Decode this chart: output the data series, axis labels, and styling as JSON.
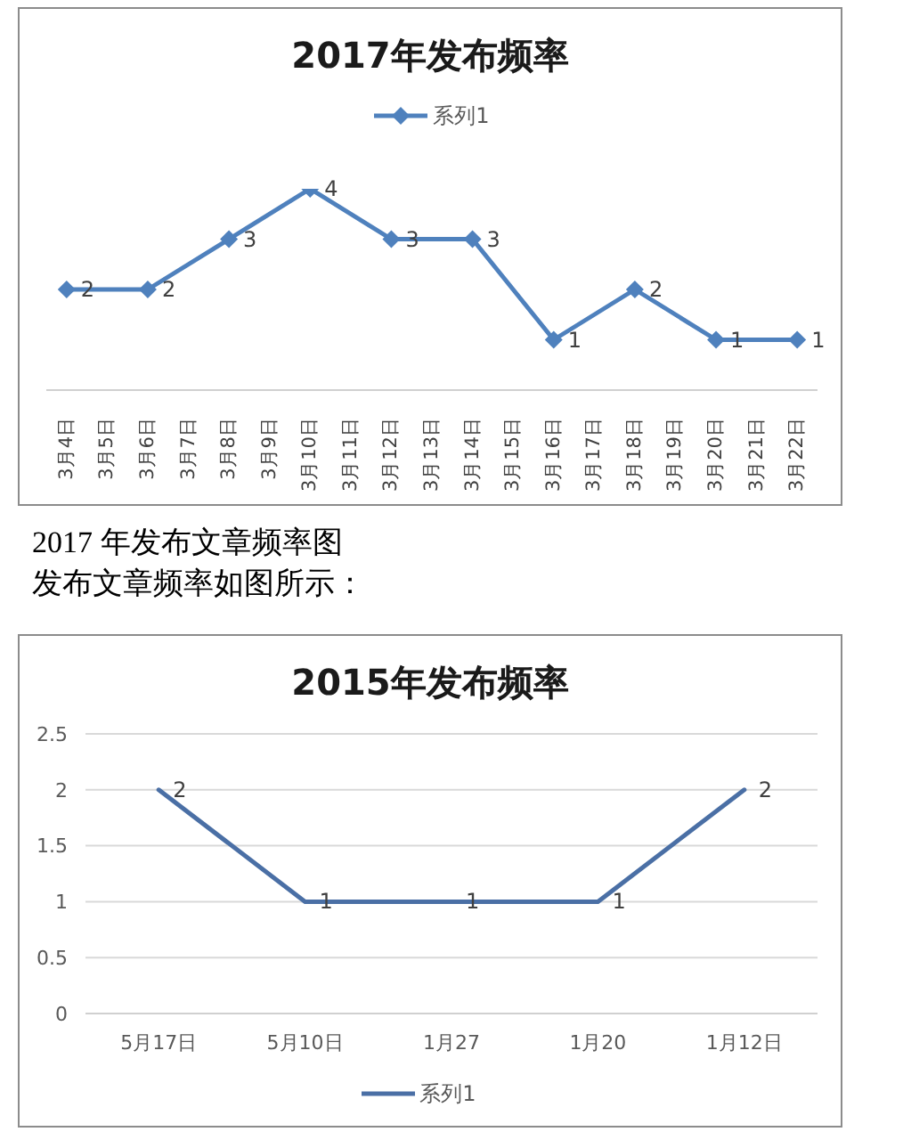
{
  "chart_data": [
    {
      "type": "line",
      "title": "2017年发布频率",
      "categories": [
        "3月4日",
        "3月5日",
        "3月6日",
        "3月7日",
        "3月8日",
        "3月9日",
        "3月10日",
        "3月11日",
        "3月12日",
        "3月13日",
        "3月14日",
        "3月15日",
        "3月16日",
        "3月17日",
        "3月18日",
        "3月19日",
        "3月20日",
        "3月21日",
        "3月22日"
      ],
      "series": [
        {
          "name": "系列1",
          "color": "#4f81bd",
          "values": [
            2,
            null,
            2,
            null,
            3,
            null,
            4,
            null,
            3,
            null,
            3,
            null,
            1,
            null,
            2,
            null,
            1,
            null,
            1
          ]
        }
      ],
      "legend": "top",
      "marker": "diamond",
      "data_labels": true,
      "tick_labels": "x",
      "annotations": [
        "2017 年发布文章频率图",
        "发布文章频率如图所示："
      ]
    },
    {
      "type": "line",
      "title": "2015年发布频率",
      "categories": [
        "5月17日",
        "5月10日",
        "1月27",
        "1月20",
        "1月12日"
      ],
      "series": [
        {
          "name": "系列1",
          "color": "#4a6fa5",
          "values": [
            2,
            1,
            1,
            1,
            2
          ]
        }
      ],
      "legend": "bottom",
      "data_labels": true,
      "grid": "y",
      "ylim": [
        0,
        2.5
      ],
      "yticks": [
        0,
        0.5,
        1,
        1.5,
        2,
        2.5
      ]
    }
  ]
}
